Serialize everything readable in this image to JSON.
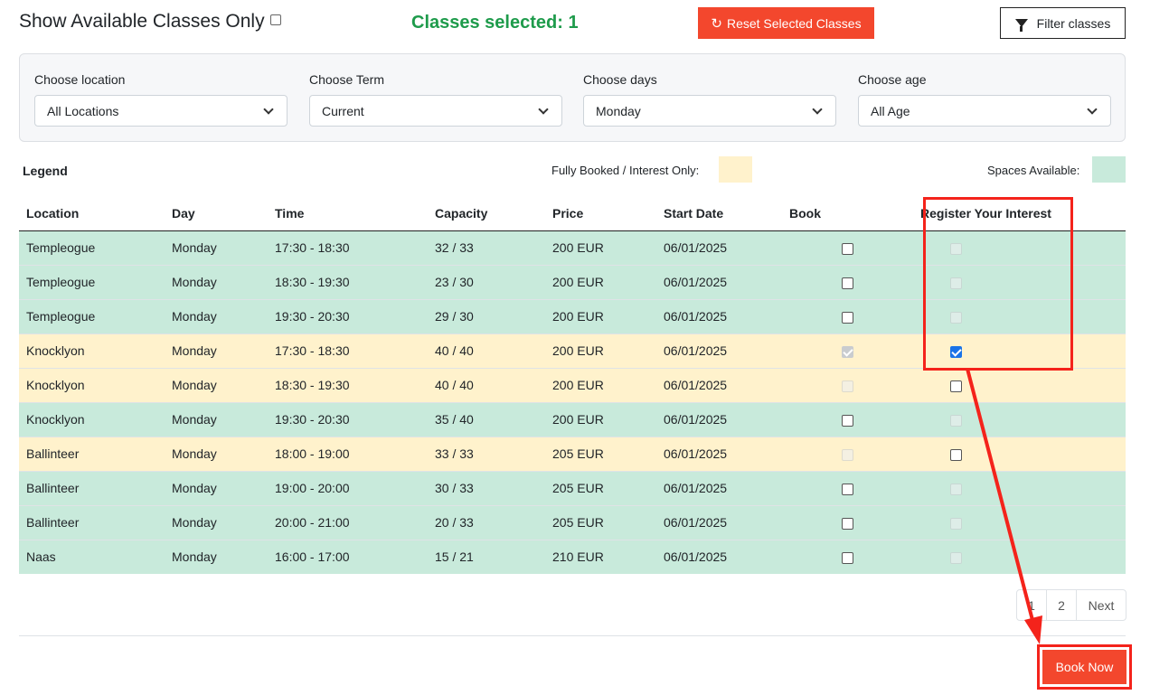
{
  "header": {
    "show_available_label": "Show Available Classes Only",
    "classes_selected": "Classes selected: 1",
    "reset_label": "Reset Selected Classes",
    "filter_label": "Filter classes"
  },
  "filters": [
    {
      "label": "Choose location",
      "value": "All Locations"
    },
    {
      "label": "Choose Term",
      "value": "Current"
    },
    {
      "label": "Choose days",
      "value": "Monday"
    },
    {
      "label": "Choose age",
      "value": "All Age"
    }
  ],
  "legend": {
    "title": "Legend",
    "booked_label": "Fully Booked / Interest Only:",
    "available_label": "Spaces Available:",
    "booked_color": "#fff2cc",
    "available_color": "#c8eadb"
  },
  "table": {
    "headers": [
      "Location",
      "Day",
      "Time",
      "Capacity",
      "Price",
      "Start Date",
      "Book",
      "Register Your Interest"
    ],
    "rows": [
      {
        "location": "Templeogue",
        "day": "Monday",
        "time": "17:30 - 18:30",
        "capacity": "32 / 33",
        "price": "200 EUR",
        "start": "06/01/2025",
        "status": "avail",
        "book_checked": false,
        "interest_checked": false
      },
      {
        "location": "Templeogue",
        "day": "Monday",
        "time": "18:30 - 19:30",
        "capacity": "23 / 30",
        "price": "200 EUR",
        "start": "06/01/2025",
        "status": "avail",
        "book_checked": false,
        "interest_checked": false
      },
      {
        "location": "Templeogue",
        "day": "Monday",
        "time": "19:30 - 20:30",
        "capacity": "29 / 30",
        "price": "200 EUR",
        "start": "06/01/2025",
        "status": "avail",
        "book_checked": false,
        "interest_checked": false
      },
      {
        "location": "Knocklyon",
        "day": "Monday",
        "time": "17:30 - 18:30",
        "capacity": "40 / 40",
        "price": "200 EUR",
        "start": "06/01/2025",
        "status": "booked",
        "book_checked": true,
        "interest_checked": true
      },
      {
        "location": "Knocklyon",
        "day": "Monday",
        "time": "18:30 - 19:30",
        "capacity": "40 / 40",
        "price": "200 EUR",
        "start": "06/01/2025",
        "status": "booked",
        "book_checked": false,
        "interest_checked": false
      },
      {
        "location": "Knocklyon",
        "day": "Monday",
        "time": "19:30 - 20:30",
        "capacity": "35 / 40",
        "price": "200 EUR",
        "start": "06/01/2025",
        "status": "avail",
        "book_checked": false,
        "interest_checked": false
      },
      {
        "location": "Ballinteer",
        "day": "Monday",
        "time": "18:00 - 19:00",
        "capacity": "33 / 33",
        "price": "205 EUR",
        "start": "06/01/2025",
        "status": "booked",
        "book_checked": false,
        "interest_checked": false
      },
      {
        "location": "Ballinteer",
        "day": "Monday",
        "time": "19:00 - 20:00",
        "capacity": "30 / 33",
        "price": "205 EUR",
        "start": "06/01/2025",
        "status": "avail",
        "book_checked": false,
        "interest_checked": false
      },
      {
        "location": "Ballinteer",
        "day": "Monday",
        "time": "20:00 - 21:00",
        "capacity": "20 / 33",
        "price": "205 EUR",
        "start": "06/01/2025",
        "status": "avail",
        "book_checked": false,
        "interest_checked": false
      },
      {
        "location": "Naas",
        "day": "Monday",
        "time": "16:00 - 17:00",
        "capacity": "15 / 21",
        "price": "210 EUR",
        "start": "06/01/2025",
        "status": "avail",
        "book_checked": false,
        "interest_checked": false
      }
    ]
  },
  "pagination": {
    "pages": [
      "1",
      "2"
    ],
    "next_label": "Next"
  },
  "book_now_label": "Book Now",
  "colors": {
    "accent": "#f3472d",
    "success": "#1e9b4b",
    "annotation": "#f4231b"
  }
}
